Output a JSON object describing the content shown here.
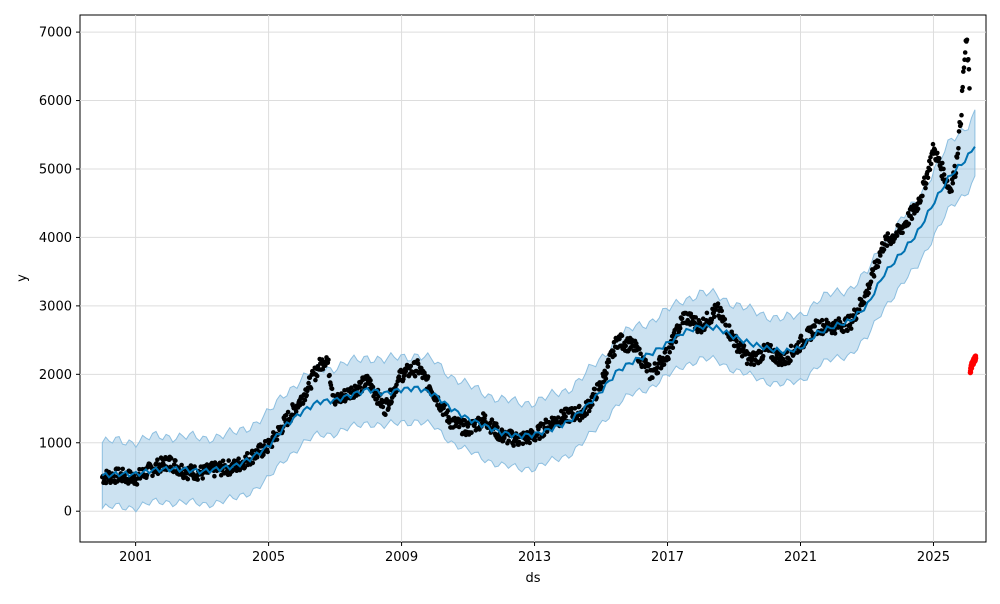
{
  "chart_data": {
    "type": "scatter",
    "title": "",
    "xlabel": "ds",
    "ylabel": "y",
    "x_ticks": [
      "2001",
      "2005",
      "2009",
      "2013",
      "2017",
      "2021",
      "2025"
    ],
    "y_ticks": [
      "0",
      "1000",
      "2000",
      "3000",
      "4000",
      "5000",
      "6000",
      "7000"
    ],
    "xlim": [
      "1999-05-01",
      "2026-08-01"
    ],
    "ylim": [
      -450,
      7250
    ],
    "grid": true,
    "colors": {
      "observed": "#000000",
      "forecast": "#0072B2",
      "interval": "#8DBFE0",
      "highlight": "#FF0000"
    },
    "series": [
      {
        "role": "forecast_line",
        "points": [
          [
            "2000-01-01",
            520
          ],
          [
            "2000-07-01",
            545
          ],
          [
            "2001-01-01",
            540
          ],
          [
            "2001-07-01",
            600
          ],
          [
            "2002-01-01",
            620
          ],
          [
            "2002-07-01",
            610
          ],
          [
            "2003-01-01",
            580
          ],
          [
            "2003-07-01",
            620
          ],
          [
            "2004-01-01",
            660
          ],
          [
            "2004-07-01",
            780
          ],
          [
            "2005-01-01",
            950
          ],
          [
            "2005-07-01",
            1250
          ],
          [
            "2006-01-01",
            1450
          ],
          [
            "2006-07-01",
            1600
          ],
          [
            "2007-01-01",
            1620
          ],
          [
            "2007-07-01",
            1700
          ],
          [
            "2008-01-01",
            1780
          ],
          [
            "2008-07-01",
            1720
          ],
          [
            "2009-01-01",
            1780
          ],
          [
            "2009-07-01",
            1800
          ],
          [
            "2010-01-01",
            1700
          ],
          [
            "2010-07-01",
            1500
          ],
          [
            "2011-01-01",
            1350
          ],
          [
            "2011-07-01",
            1250
          ],
          [
            "2012-01-01",
            1150
          ],
          [
            "2012-07-01",
            1100
          ],
          [
            "2013-01-01",
            1120
          ],
          [
            "2013-07-01",
            1200
          ],
          [
            "2014-01-01",
            1300
          ],
          [
            "2014-07-01",
            1500
          ],
          [
            "2015-01-01",
            1750
          ],
          [
            "2015-07-01",
            2050
          ],
          [
            "2016-01-01",
            2200
          ],
          [
            "2016-07-01",
            2300
          ],
          [
            "2017-01-01",
            2450
          ],
          [
            "2017-07-01",
            2620
          ],
          [
            "2018-01-01",
            2700
          ],
          [
            "2018-07-01",
            2680
          ],
          [
            "2019-01-01",
            2550
          ],
          [
            "2019-07-01",
            2450
          ],
          [
            "2020-01-01",
            2380
          ],
          [
            "2020-07-01",
            2330
          ],
          [
            "2021-01-01",
            2380
          ],
          [
            "2021-07-01",
            2600
          ],
          [
            "2022-01-01",
            2700
          ],
          [
            "2022-07-01",
            2780
          ],
          [
            "2023-01-01",
            3000
          ],
          [
            "2023-07-01",
            3450
          ],
          [
            "2024-01-01",
            3750
          ],
          [
            "2024-07-01",
            4050
          ],
          [
            "2025-01-01",
            4500
          ],
          [
            "2025-07-01",
            4900
          ],
          [
            "2026-01-01",
            5150
          ],
          [
            "2026-04-01",
            5350
          ]
        ]
      },
      {
        "role": "observed",
        "points": [
          [
            "2000-01-01",
            500
          ],
          [
            "2000-07-01",
            520
          ],
          [
            "2001-01-01",
            480
          ],
          [
            "2001-07-01",
            620
          ],
          [
            "2002-01-01",
            720
          ],
          [
            "2002-07-01",
            580
          ],
          [
            "2003-01-01",
            560
          ],
          [
            "2003-07-01",
            620
          ],
          [
            "2004-01-01",
            650
          ],
          [
            "2004-07-01",
            800
          ],
          [
            "2005-01-01",
            950
          ],
          [
            "2005-07-01",
            1300
          ],
          [
            "2006-01-01",
            1650
          ],
          [
            "2006-07-01",
            2100
          ],
          [
            "2006-10-01",
            2250
          ],
          [
            "2007-01-01",
            1600
          ],
          [
            "2007-07-01",
            1750
          ],
          [
            "2008-01-01",
            1900
          ],
          [
            "2008-07-01",
            1500
          ],
          [
            "2009-01-01",
            2000
          ],
          [
            "2009-07-01",
            2100
          ],
          [
            "2010-01-01",
            1700
          ],
          [
            "2010-07-01",
            1300
          ],
          [
            "2011-01-01",
            1200
          ],
          [
            "2011-07-01",
            1350
          ],
          [
            "2012-01-01",
            1100
          ],
          [
            "2012-07-01",
            1050
          ],
          [
            "2013-01-01",
            1100
          ],
          [
            "2013-07-01",
            1300
          ],
          [
            "2014-01-01",
            1400
          ],
          [
            "2014-07-01",
            1450
          ],
          [
            "2015-01-01",
            1850
          ],
          [
            "2015-07-01",
            2500
          ],
          [
            "2016-01-01",
            2400
          ],
          [
            "2016-07-01",
            2000
          ],
          [
            "2017-01-01",
            2300
          ],
          [
            "2017-07-01",
            2850
          ],
          [
            "2018-01-01",
            2700
          ],
          [
            "2018-07-01",
            2950
          ],
          [
            "2019-01-01",
            2500
          ],
          [
            "2019-07-01",
            2200
          ],
          [
            "2020-01-01",
            2350
          ],
          [
            "2020-07-01",
            2200
          ],
          [
            "2021-01-01",
            2450
          ],
          [
            "2021-07-01",
            2700
          ],
          [
            "2022-01-01",
            2700
          ],
          [
            "2022-07-01",
            2750
          ],
          [
            "2023-01-01",
            3200
          ],
          [
            "2023-07-01",
            3900
          ],
          [
            "2024-01-01",
            4100
          ],
          [
            "2024-07-01",
            4450
          ],
          [
            "2024-10-01",
            4800
          ],
          [
            "2025-01-01",
            5300
          ],
          [
            "2025-04-01",
            5000
          ],
          [
            "2025-07-01",
            4700
          ],
          [
            "2025-09-01",
            5000
          ],
          [
            "2025-11-01",
            5800
          ],
          [
            "2025-12-01",
            6500
          ],
          [
            "2026-01-01",
            6900
          ],
          [
            "2026-02-01",
            6200
          ]
        ]
      },
      {
        "role": "highlight",
        "points": [
          [
            "2026-02-10",
            2050
          ],
          [
            "2026-03-01",
            2150
          ],
          [
            "2026-03-20",
            2200
          ],
          [
            "2026-04-10",
            2250
          ]
        ]
      }
    ],
    "interval_halfwidth": 480
  }
}
